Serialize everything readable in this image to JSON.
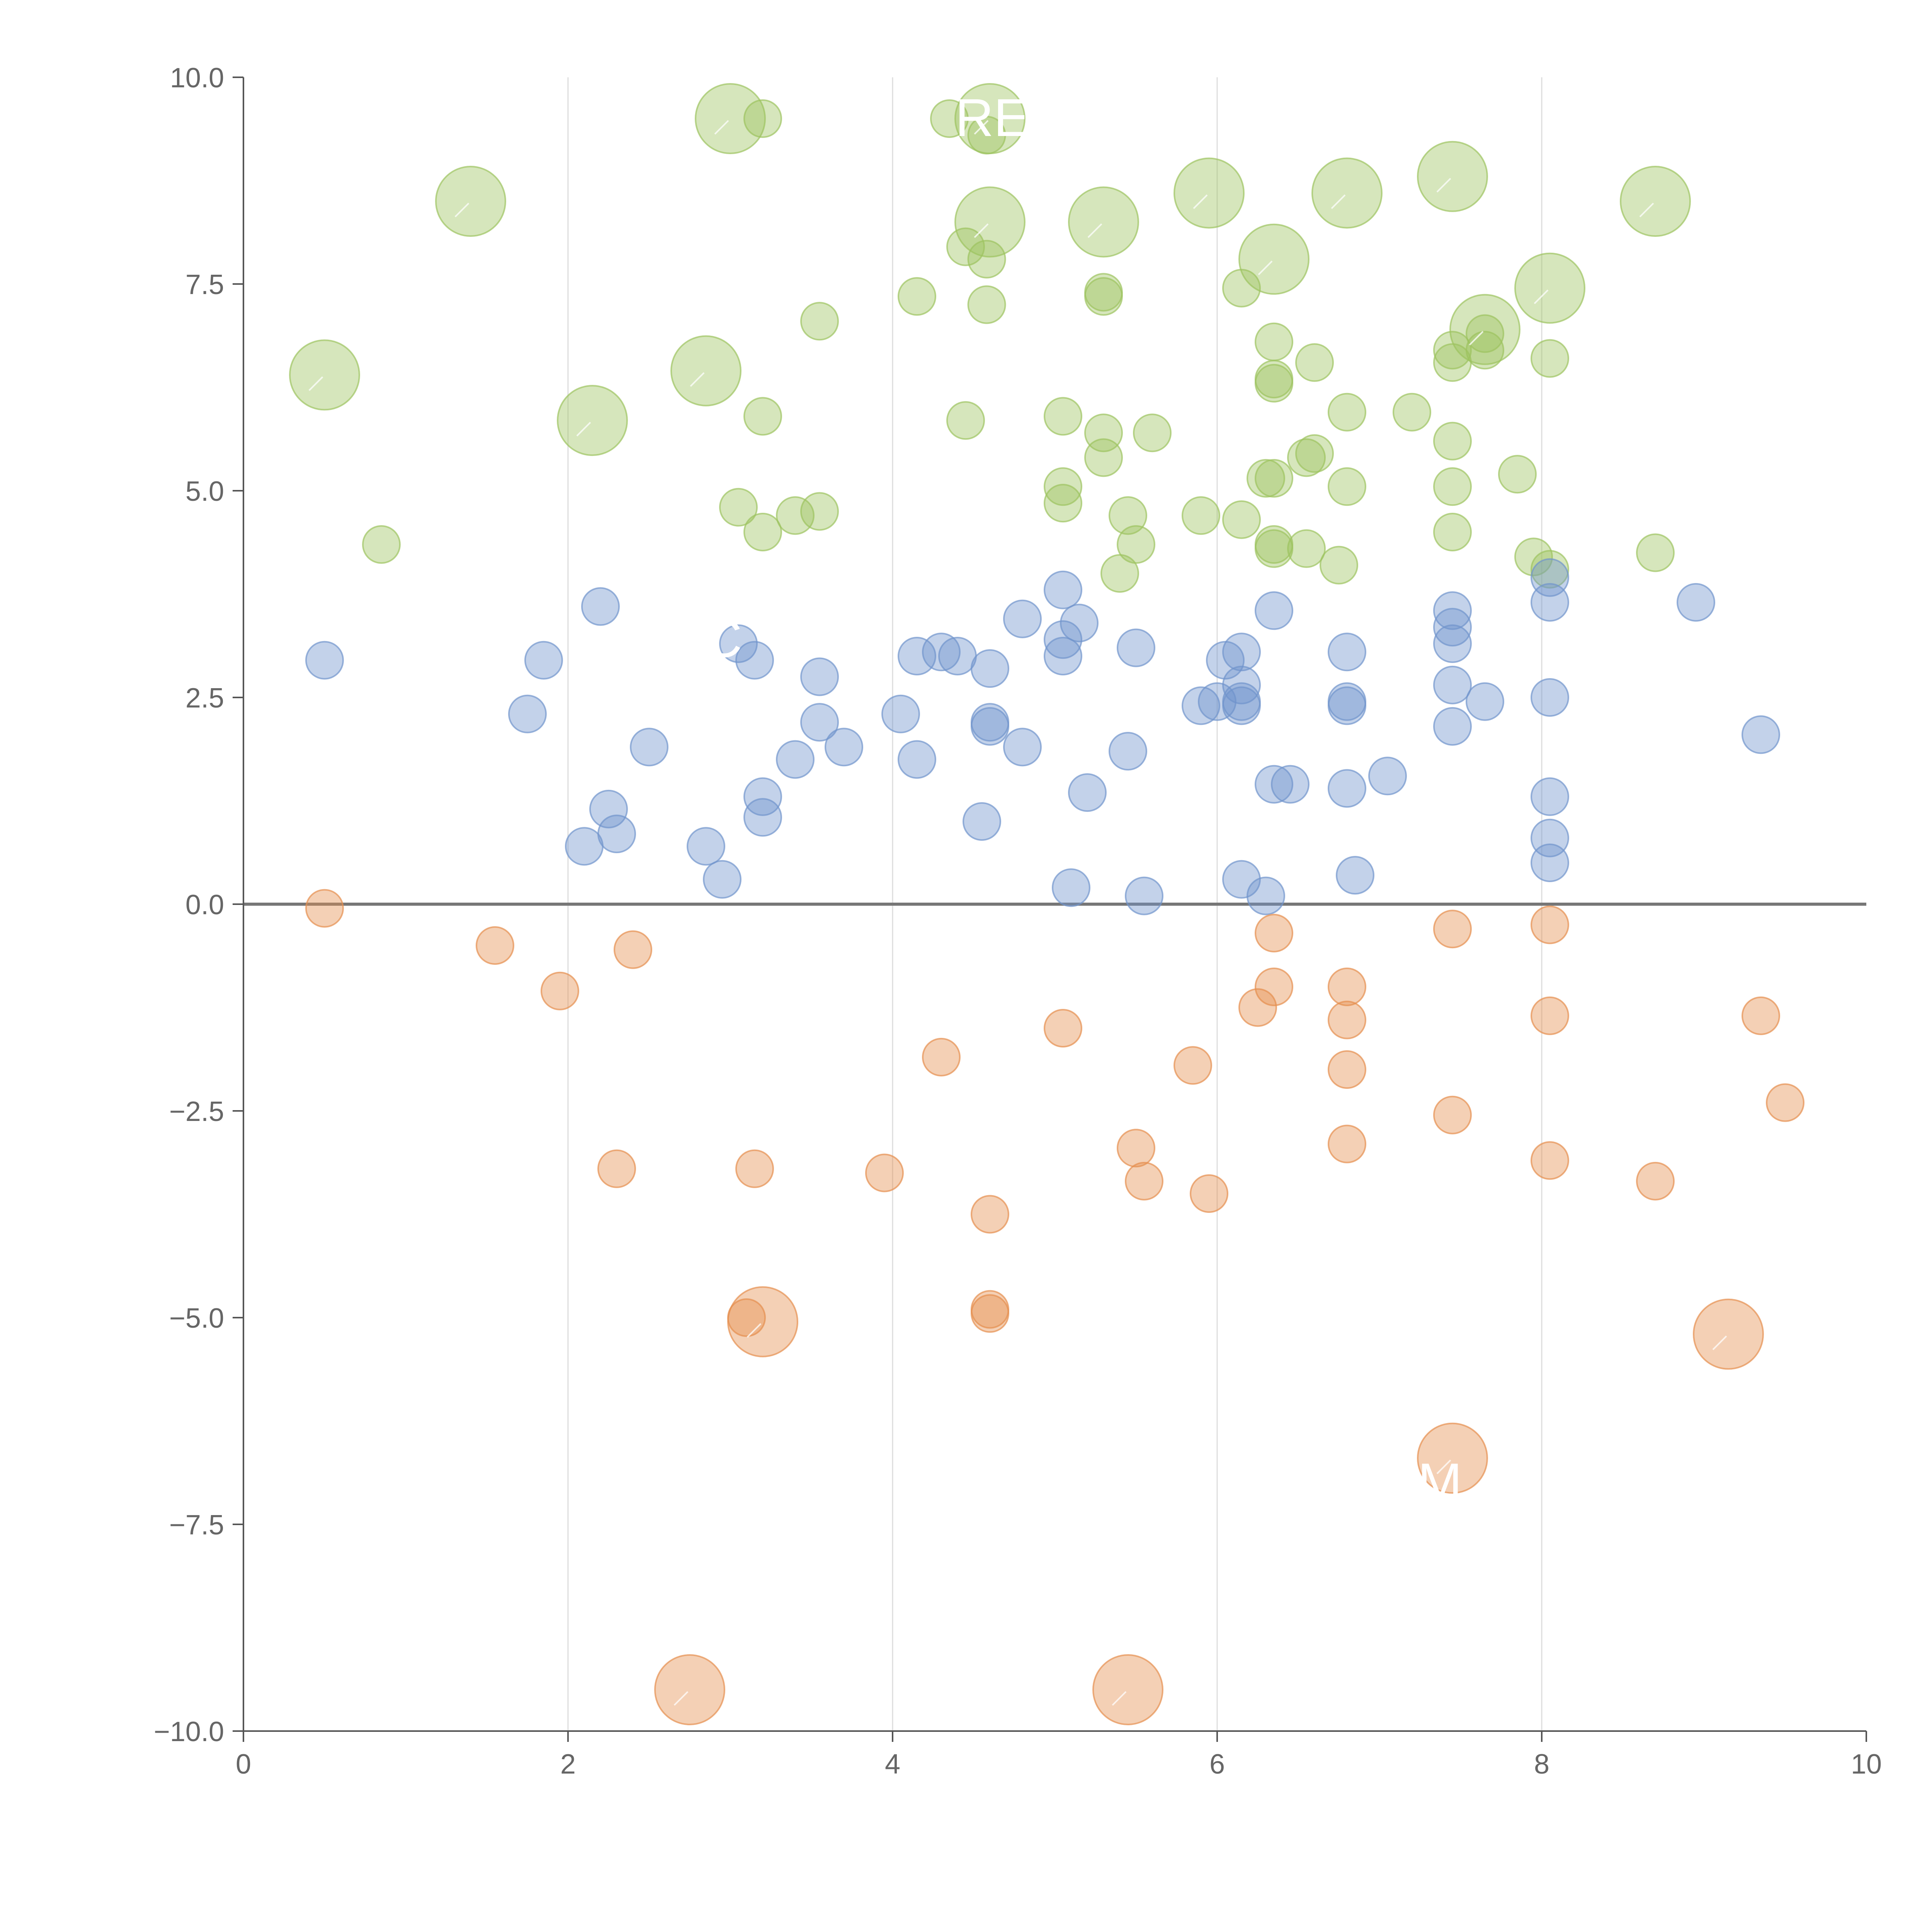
{
  "chart_data": {
    "type": "scatter",
    "title": "",
    "xlabel": "",
    "ylabel": "",
    "xlim": [
      0,
      10
    ],
    "ylim": [
      -10,
      10
    ],
    "x_ticks": [
      "0",
      "2",
      "4",
      "6",
      "8",
      "10"
    ],
    "y_ticks": [
      "−10.0",
      "−7.5",
      "−5.0",
      "−2.5",
      "0.0",
      "2.5",
      "5.0",
      "7.5",
      "10.0"
    ],
    "y_tick_values": [
      -10,
      -7.5,
      -5,
      -2.5,
      0,
      2.5,
      5,
      7.5,
      10
    ],
    "x_tick_values": [
      0,
      2,
      4,
      6,
      8,
      10
    ],
    "grid": "vertical lines at x ticks",
    "zero_line": true,
    "colors": {
      "green": "#9dc35f",
      "blue": "#7094cc",
      "orange": "#e58f4e",
      "axis": "#555555",
      "grid": "#dddddd",
      "zero_line": "#777777"
    },
    "series": [
      {
        "color_key": "green",
        "small_points": [
          [
            0.85,
            4.35
          ],
          [
            3.2,
            9.5
          ],
          [
            3.55,
            7.05
          ],
          [
            3.2,
            5.9
          ],
          [
            3.05,
            4.8
          ],
          [
            3.2,
            4.5
          ],
          [
            3.4,
            4.7
          ],
          [
            3.55,
            4.75
          ],
          [
            4.15,
            7.35
          ],
          [
            4.35,
            9.5
          ],
          [
            4.45,
            7.95
          ],
          [
            4.58,
            7.8
          ],
          [
            4.58,
            7.25
          ],
          [
            4.45,
            5.85
          ],
          [
            4.58,
            9.3
          ],
          [
            5.05,
            5.9
          ],
          [
            5.05,
            4.85
          ],
          [
            5.05,
            5.05
          ],
          [
            5.3,
            7.4
          ],
          [
            5.3,
            7.35
          ],
          [
            5.3,
            5.7
          ],
          [
            5.3,
            5.4
          ],
          [
            5.45,
            4.7
          ],
          [
            5.5,
            4.35
          ],
          [
            5.4,
            4.0
          ],
          [
            5.6,
            5.7
          ],
          [
            5.9,
            4.7
          ],
          [
            6.15,
            7.45
          ],
          [
            6.15,
            4.65
          ],
          [
            6.35,
            6.8
          ],
          [
            6.35,
            6.35
          ],
          [
            6.35,
            6.3
          ],
          [
            6.3,
            5.15
          ],
          [
            6.35,
            5.15
          ],
          [
            6.35,
            4.35
          ],
          [
            6.35,
            4.3
          ],
          [
            6.55,
            4.3
          ],
          [
            6.55,
            5.4
          ],
          [
            6.6,
            5.45
          ],
          [
            6.6,
            6.55
          ],
          [
            6.75,
            4.1
          ],
          [
            6.8,
            5.95
          ],
          [
            6.8,
            5.05
          ],
          [
            7.2,
            5.95
          ],
          [
            7.45,
            6.7
          ],
          [
            7.45,
            6.55
          ],
          [
            7.45,
            5.6
          ],
          [
            7.45,
            5.05
          ],
          [
            7.45,
            4.5
          ],
          [
            7.65,
            6.9
          ],
          [
            7.65,
            6.7
          ],
          [
            7.85,
            5.2
          ],
          [
            7.95,
            4.2
          ],
          [
            8.05,
            4.05
          ],
          [
            8.05,
            6.6
          ],
          [
            8.7,
            4.25
          ]
        ],
        "big_points": [
          [
            1.4,
            8.5
          ],
          [
            0.5,
            6.4
          ],
          [
            2.15,
            5.85
          ],
          [
            2.85,
            6.45
          ],
          [
            3.0,
            9.5
          ],
          [
            4.6,
            9.5
          ],
          [
            4.6,
            8.25
          ],
          [
            5.3,
            8.25
          ],
          [
            5.95,
            8.6
          ],
          [
            6.35,
            7.8
          ],
          [
            6.8,
            8.6
          ],
          [
            7.45,
            8.8
          ],
          [
            7.65,
            6.95
          ],
          [
            8.05,
            7.45
          ],
          [
            8.7,
            8.5
          ]
        ]
      },
      {
        "color_key": "blue",
        "small_points": [
          [
            0.5,
            2.95
          ],
          [
            1.75,
            2.3
          ],
          [
            1.85,
            2.95
          ],
          [
            2.2,
            3.6
          ],
          [
            2.1,
            0.7
          ],
          [
            2.25,
            1.15
          ],
          [
            2.3,
            0.85
          ],
          [
            2.5,
            1.9
          ],
          [
            2.85,
            0.7
          ],
          [
            2.95,
            0.3
          ],
          [
            3.05,
            3.15
          ],
          [
            3.15,
            2.95
          ],
          [
            3.2,
            1.3
          ],
          [
            3.2,
            1.05
          ],
          [
            3.4,
            1.75
          ],
          [
            3.55,
            2.2
          ],
          [
            3.55,
            2.75
          ],
          [
            3.7,
            1.9
          ],
          [
            4.05,
            2.3
          ],
          [
            4.15,
            3.0
          ],
          [
            4.15,
            1.75
          ],
          [
            4.3,
            3.05
          ],
          [
            4.4,
            3.0
          ],
          [
            4.55,
            1.0
          ],
          [
            4.6,
            2.85
          ],
          [
            4.6,
            2.15
          ],
          [
            4.6,
            2.2
          ],
          [
            4.8,
            3.45
          ],
          [
            4.8,
            1.9
          ],
          [
            5.05,
            3.8
          ],
          [
            5.05,
            3.2
          ],
          [
            5.05,
            3.0
          ],
          [
            5.15,
            3.4
          ],
          [
            5.1,
            0.2
          ],
          [
            5.2,
            1.35
          ],
          [
            5.45,
            1.85
          ],
          [
            5.5,
            3.1
          ],
          [
            5.55,
            0.1
          ],
          [
            5.9,
            2.4
          ],
          [
            6.0,
            2.45
          ],
          [
            6.05,
            2.95
          ],
          [
            6.15,
            3.05
          ],
          [
            6.15,
            2.65
          ],
          [
            6.15,
            2.45
          ],
          [
            6.15,
            2.4
          ],
          [
            6.15,
            0.3
          ],
          [
            6.3,
            0.1
          ],
          [
            6.35,
            3.55
          ],
          [
            6.35,
            1.45
          ],
          [
            6.45,
            1.45
          ],
          [
            6.8,
            3.05
          ],
          [
            6.8,
            2.45
          ],
          [
            6.8,
            2.4
          ],
          [
            6.8,
            1.4
          ],
          [
            6.85,
            0.35
          ],
          [
            7.05,
            1.55
          ],
          [
            7.45,
            3.55
          ],
          [
            7.45,
            3.35
          ],
          [
            7.45,
            3.15
          ],
          [
            7.45,
            2.65
          ],
          [
            7.45,
            2.15
          ],
          [
            7.65,
            2.45
          ],
          [
            8.05,
            3.95
          ],
          [
            8.05,
            3.65
          ],
          [
            8.05,
            2.5
          ],
          [
            8.05,
            1.3
          ],
          [
            8.05,
            0.8
          ],
          [
            8.05,
            0.5
          ],
          [
            8.95,
            3.65
          ],
          [
            9.35,
            2.05
          ]
        ],
        "big_points": []
      },
      {
        "color_key": "orange",
        "small_points": [
          [
            0.5,
            -0.05
          ],
          [
            1.55,
            -0.5
          ],
          [
            1.95,
            -1.05
          ],
          [
            2.4,
            -0.55
          ],
          [
            2.3,
            -3.2
          ],
          [
            3.15,
            -3.2
          ],
          [
            3.1,
            -5.0
          ],
          [
            3.95,
            -3.25
          ],
          [
            4.3,
            -1.85
          ],
          [
            4.6,
            -3.75
          ],
          [
            4.6,
            -4.9
          ],
          [
            4.6,
            -4.95
          ],
          [
            5.05,
            -1.5
          ],
          [
            5.5,
            -2.95
          ],
          [
            5.55,
            -3.35
          ],
          [
            5.85,
            -1.95
          ],
          [
            5.95,
            -3.5
          ],
          [
            6.25,
            -1.25
          ],
          [
            6.35,
            -0.35
          ],
          [
            6.35,
            -1.0
          ],
          [
            6.8,
            -1.0
          ],
          [
            6.8,
            -1.4
          ],
          [
            6.8,
            -2.0
          ],
          [
            6.8,
            -2.9
          ],
          [
            7.45,
            -0.3
          ],
          [
            7.45,
            -2.55
          ],
          [
            8.05,
            -0.25
          ],
          [
            8.05,
            -1.35
          ],
          [
            8.05,
            -3.1
          ],
          [
            8.7,
            -3.35
          ],
          [
            9.35,
            -1.35
          ],
          [
            9.5,
            -2.4
          ]
        ],
        "big_points": [
          [
            3.2,
            -5.05
          ],
          [
            7.45,
            -6.7
          ],
          [
            9.15,
            -5.2
          ],
          [
            2.75,
            -9.5
          ],
          [
            5.45,
            -9.5
          ]
        ]
      }
    ],
    "annotations": [
      {
        "text": "RE",
        "x": 4.6,
        "y": 9.5
      },
      {
        "text": "C",
        "x": 3.05,
        "y": 3.2
      },
      {
        "text": "M",
        "x": 7.45,
        "y": -7.0
      }
    ]
  }
}
